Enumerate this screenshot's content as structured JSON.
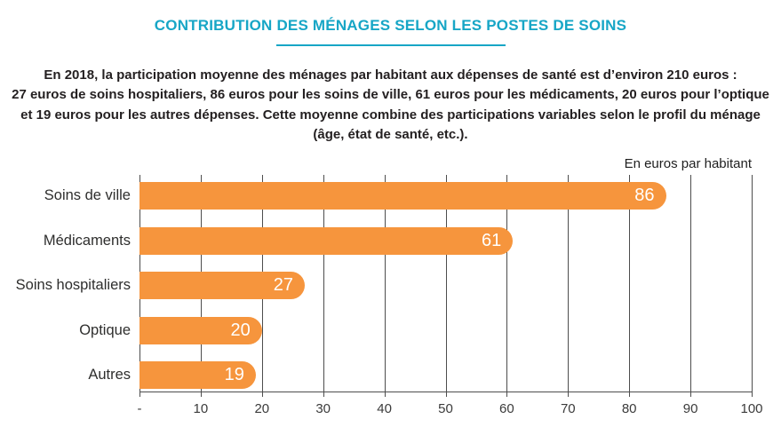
{
  "header": {
    "title": "CONTRIBUTION DES MÉNAGES SELON LES POSTES DE SOINS"
  },
  "intro": {
    "lines": [
      "En 2018, la participation moyenne des ménages par habitant aux dépenses de santé est d’environ 210 euros :",
      "27 euros de soins hospitaliers, 86 euros pour les soins de ville, 61 euros pour les médicaments, 20 euros pour l’optique",
      "et 19 euros pour les autres dépenses. Cette moyenne combine des participations variables selon le profil du ménage",
      "(âge, état de santé, etc.)."
    ]
  },
  "chart_data": {
    "type": "bar",
    "orientation": "horizontal",
    "title": "CONTRIBUTION DES MÉNAGES SELON LES POSTES DE SOINS",
    "unit_label": "En euros par habitant",
    "categories": [
      "Soins de ville",
      "Médicaments",
      "Soins hospitaliers",
      "Optique",
      "Autres"
    ],
    "values": [
      86,
      61,
      27,
      20,
      19
    ],
    "xlim": [
      0,
      100
    ],
    "xticks": [
      "-",
      "10",
      "20",
      "30",
      "40",
      "50",
      "60",
      "70",
      "80",
      "90",
      "100"
    ],
    "grid": true,
    "legend": "none",
    "bar_color": "#F6953D",
    "value_label_color": "#FFFFFF"
  },
  "colors": {
    "title_teal": "#17A6C6",
    "bar_orange": "#F6953D",
    "grid_line": "#4D4D4D",
    "body_text": "#231F20"
  }
}
